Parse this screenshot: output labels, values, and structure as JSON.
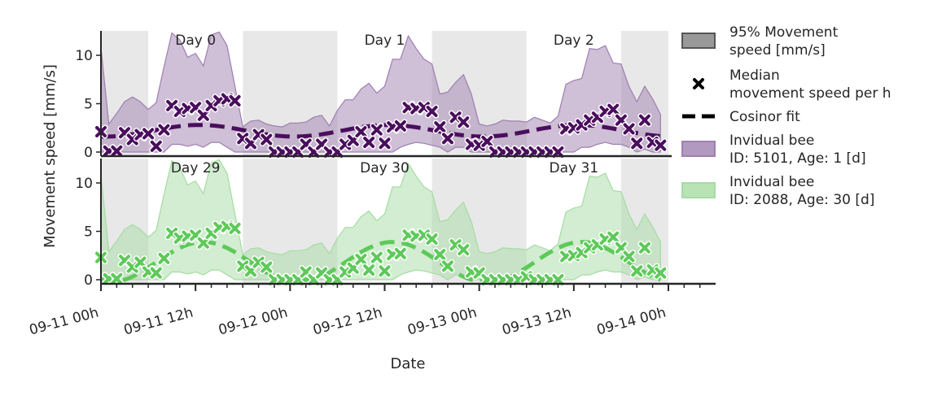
{
  "chart_data": {
    "type": "line",
    "shared_x_axis": {
      "label": "Date",
      "range_hours": [
        0,
        96
      ],
      "tick_labels": [
        "09-11 00h",
        "09-11 12h",
        "09-12 00h",
        "09-12 12h",
        "09-13 00h",
        "09-13 12h",
        "09-14 00h"
      ],
      "tick_hours": [
        0,
        12,
        24,
        36,
        48,
        60,
        72
      ],
      "minor_tick_step_hours": 2
    },
    "shared_y_axis": {
      "label": "Movement speed [mm/s]"
    },
    "night_shading_hours": [
      [
        0,
        6
      ],
      [
        18,
        30
      ],
      [
        42,
        54
      ],
      [
        66,
        72
      ]
    ],
    "legend": {
      "placement": "right",
      "entries": [
        {
          "label": "95% Movement speed [mm/s]",
          "lines": [
            "95% Movement",
            "speed [mm/s]"
          ],
          "marker": "band",
          "color": "#808080"
        },
        {
          "label": "Median movement speed per h",
          "lines": [
            "Median",
            "movement speed per h"
          ],
          "marker": "x",
          "color": "#000000"
        },
        {
          "label": "Cosinor fit",
          "lines": [
            "Cosinor fit"
          ],
          "marker": "dashed-line",
          "color": "#000000"
        },
        {
          "label": "Invidual bee ID: 5101, Age: 1 [d]",
          "lines": [
            "Invidual bee",
            "ID: 5101, Age: 1 [d]"
          ],
          "marker": "band",
          "color": "#9f7fb0"
        },
        {
          "label": "Invidual bee ID: 2088, Age: 30 [d]",
          "lines": [
            "Invidual bee",
            "ID: 2088, Age: 30 [d]"
          ],
          "marker": "band",
          "color": "#a6dca3"
        }
      ]
    },
    "panels": [
      {
        "name": "Invidual bee ID: 5101, Age: 1 [d]",
        "ylim": [
          0,
          12.5
        ],
        "y_ticks": [
          0,
          5,
          10
        ],
        "color": "#4a0e5c",
        "band_color": "#9f7fb0",
        "day_labels": [
          {
            "hour": 12,
            "text": "Day 0"
          },
          {
            "hour": 36,
            "text": "Day 1"
          },
          {
            "hour": 60,
            "text": "Day 2"
          }
        ],
        "median_x": [
          0,
          1,
          2,
          3,
          4,
          5,
          6,
          7,
          8,
          9,
          10,
          11,
          12,
          13,
          14,
          15,
          16,
          17,
          18,
          19,
          20,
          21,
          22,
          23,
          24,
          25,
          26,
          27,
          28,
          29,
          30,
          31,
          32,
          33,
          34,
          35,
          36,
          37,
          38,
          39,
          40,
          41,
          42,
          43,
          44,
          45,
          46,
          47,
          48,
          49,
          50,
          51,
          52,
          53,
          54,
          55,
          56,
          57,
          58,
          59,
          60,
          61,
          62,
          63,
          64,
          65,
          66,
          67,
          68,
          69,
          70,
          71
        ],
        "median_y": [
          2.1,
          0.1,
          0.1,
          2.0,
          1.3,
          1.8,
          1.9,
          0.6,
          2.3,
          4.8,
          4.2,
          4.5,
          4.6,
          3.8,
          4.8,
          5.3,
          5.5,
          5.3,
          1.4,
          0.9,
          1.8,
          1.3,
          0.0,
          0.0,
          0.0,
          0.0,
          0.8,
          0.0,
          0.8,
          0.0,
          0.0,
          0.8,
          1.2,
          2.1,
          1.0,
          2.3,
          0.9,
          2.6,
          2.7,
          4.6,
          4.5,
          4.6,
          4.2,
          2.6,
          1.4,
          3.6,
          3.1,
          0.8,
          0.7,
          1.1,
          0.0,
          0.0,
          0.0,
          0.0,
          0.0,
          0.0,
          0.0,
          0.0,
          0.0,
          2.4,
          2.5,
          2.8,
          3.3,
          3.6,
          4.2,
          4.4,
          3.3,
          2.4,
          0.9,
          3.3,
          1.0,
          0.7
        ],
        "band_upper": [
          10.8,
          2.9,
          4.0,
          5.2,
          5.7,
          5.2,
          4.4,
          5.1,
          8.8,
          12.3,
          11.6,
          9.8,
          10.2,
          8.9,
          12.1,
          12.6,
          11.0,
          6.8,
          2.6,
          3.2,
          3.3,
          2.9,
          2.7,
          2.6,
          3.0,
          3.0,
          3.1,
          3.6,
          3.8,
          2.7,
          4.3,
          5.4,
          5.4,
          6.5,
          7.1,
          6.1,
          6.8,
          9.6,
          9.6,
          12.0,
          10.7,
          9.6,
          9.1,
          6.0,
          6.2,
          7.2,
          8.0,
          6.0,
          2.9,
          2.7,
          2.9,
          3.3,
          3.2,
          3.2,
          3.1,
          3.6,
          3.3,
          3.0,
          3.7,
          7.0,
          7.4,
          7.6,
          10.7,
          10.6,
          11.0,
          9.2,
          9.1,
          6.8,
          5.2,
          6.8,
          5.5,
          3.9
        ],
        "band_lower": [
          0.0,
          0.0,
          0.0,
          0.0,
          0.0,
          0.0,
          0.0,
          0.0,
          0.0,
          0.8,
          0.8,
          0.6,
          0.8,
          0.5,
          1.0,
          1.0,
          0.5,
          0.0,
          0.0,
          0.0,
          0.0,
          0.0,
          0.0,
          0.0,
          0.0,
          0.0,
          0.0,
          0.0,
          0.0,
          0.0,
          0.0,
          0.0,
          0.0,
          0.0,
          0.0,
          0.0,
          0.0,
          0.0,
          0.5,
          0.8,
          1.0,
          0.9,
          0.7,
          0.5,
          0.0,
          0.5,
          0.5,
          0.0,
          0.0,
          0.0,
          0.0,
          0.0,
          0.0,
          0.0,
          0.0,
          0.0,
          0.0,
          0.0,
          0.0,
          0.0,
          0.0,
          0.5,
          0.5,
          0.8,
          1.0,
          0.8,
          0.8,
          0.5,
          0.0,
          0.3,
          0.0,
          0.0
        ],
        "cosinor": {
          "mesor": 2.2,
          "amplitude": 0.6,
          "peak_hour": 12.5,
          "period_hours": 24
        }
      },
      {
        "name": "Invidual bee ID: 2088, Age: 30 [d]",
        "ylim": [
          0,
          12.5
        ],
        "y_ticks": [
          0,
          5,
          10
        ],
        "color": "#5ec95a",
        "band_color": "#a6dca3",
        "day_labels": [
          {
            "hour": 12,
            "text": "Day 29"
          },
          {
            "hour": 36,
            "text": "Day 30"
          },
          {
            "hour": 60,
            "text": "Day 31"
          }
        ],
        "median_x": [
          0,
          1,
          2,
          3,
          4,
          5,
          6,
          7,
          8,
          9,
          10,
          11,
          12,
          13,
          14,
          15,
          16,
          17,
          18,
          19,
          20,
          21,
          22,
          23,
          24,
          25,
          26,
          27,
          28,
          29,
          30,
          31,
          32,
          33,
          34,
          35,
          36,
          37,
          38,
          39,
          40,
          41,
          42,
          43,
          44,
          45,
          46,
          47,
          48,
          49,
          50,
          51,
          52,
          53,
          54,
          55,
          56,
          57,
          58,
          59,
          60,
          61,
          62,
          63,
          64,
          65,
          66,
          67,
          68,
          69,
          70,
          71
        ],
        "median_y": [
          2.3,
          0.1,
          0.1,
          2.0,
          1.3,
          1.8,
          0.8,
          0.7,
          2.2,
          4.8,
          4.3,
          4.5,
          4.6,
          3.8,
          4.8,
          5.4,
          5.5,
          5.3,
          1.4,
          0.9,
          1.8,
          1.3,
          0.0,
          0.0,
          0.0,
          0.0,
          0.8,
          0.0,
          0.7,
          0.0,
          0.0,
          0.8,
          1.2,
          2.1,
          1.0,
          2.3,
          0.9,
          2.6,
          2.7,
          4.6,
          4.5,
          4.6,
          4.2,
          2.6,
          1.4,
          3.6,
          3.1,
          0.8,
          0.7,
          0.0,
          0.0,
          0.0,
          0.0,
          0.0,
          0.3,
          0.0,
          0.0,
          0.0,
          0.0,
          2.4,
          2.5,
          2.8,
          3.3,
          3.6,
          4.2,
          4.4,
          3.3,
          2.4,
          0.9,
          3.3,
          1.0,
          0.7
        ],
        "band_upper": [
          10.8,
          2.9,
          4.0,
          5.2,
          5.7,
          5.2,
          4.4,
          5.1,
          8.8,
          12.3,
          11.6,
          9.8,
          10.2,
          8.9,
          12.1,
          12.6,
          11.0,
          6.8,
          2.6,
          3.2,
          3.3,
          2.9,
          2.7,
          2.6,
          3.0,
          3.0,
          3.1,
          3.6,
          3.8,
          2.7,
          4.3,
          5.4,
          5.4,
          6.5,
          7.1,
          6.1,
          6.8,
          9.6,
          9.6,
          12.0,
          10.7,
          9.6,
          9.1,
          6.0,
          6.2,
          7.2,
          8.0,
          6.0,
          2.9,
          2.7,
          2.9,
          3.3,
          3.2,
          3.2,
          3.1,
          3.6,
          3.3,
          3.0,
          3.7,
          7.0,
          7.4,
          7.6,
          10.7,
          10.6,
          11.0,
          9.2,
          9.1,
          6.8,
          5.2,
          6.8,
          5.5,
          3.9
        ],
        "band_lower": [
          0.0,
          0.0,
          0.0,
          0.0,
          0.0,
          0.0,
          0.0,
          0.0,
          0.0,
          0.8,
          0.8,
          0.6,
          0.8,
          0.5,
          1.0,
          1.0,
          0.5,
          0.0,
          0.0,
          0.0,
          0.0,
          0.0,
          0.0,
          0.0,
          0.0,
          0.0,
          0.0,
          0.0,
          0.0,
          0.0,
          0.0,
          0.0,
          0.0,
          0.0,
          0.0,
          0.0,
          0.0,
          0.0,
          0.5,
          0.8,
          1.0,
          0.9,
          0.7,
          0.5,
          0.0,
          0.5,
          0.5,
          0.0,
          0.0,
          0.0,
          0.0,
          0.0,
          0.0,
          0.0,
          0.0,
          0.0,
          0.0,
          0.0,
          0.0,
          0.0,
          0.0,
          0.5,
          0.5,
          0.8,
          1.0,
          0.8,
          0.8,
          0.5,
          0.0,
          0.3,
          0.0,
          0.0
        ],
        "cosinor": {
          "mesor": 1.8,
          "amplitude": 2.1,
          "peak_hour": 13,
          "period_hours": 24,
          "clip_min": 0
        }
      }
    ]
  }
}
